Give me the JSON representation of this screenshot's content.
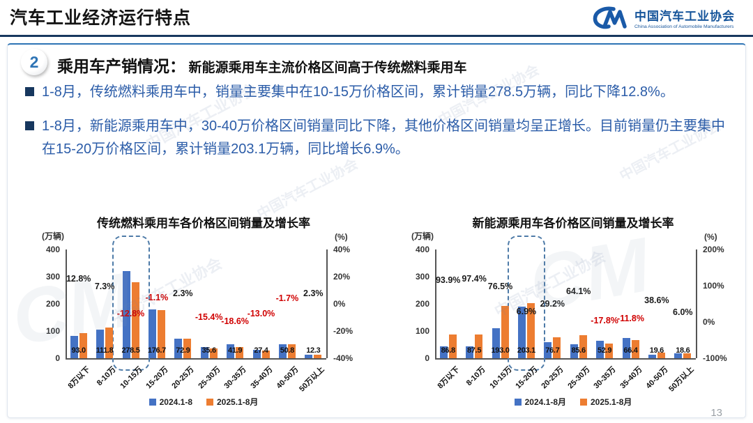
{
  "header": {
    "title": "汽车工业经济运行特点",
    "logo": {
      "icon": "caam-cm-logo",
      "name_cn": "中国汽车工业协会",
      "name_en": "China Association of Automobile Manufacturers"
    }
  },
  "section": {
    "badge": "2",
    "title": "乘用车产销情况：",
    "subtitle": "新能源乘用车主流价格区间高于传统燃料乘用车"
  },
  "bullets": [
    "1-8月，传统燃料乘用车中，销量主要集中在10-15万价格区间，累计销量278.5万辆，同比下降12.8%。",
    "1-8月，新能源乘用车中，30-40万价格区间销量同比下降，其他价格区间销量均呈正增长。目前销量仍主要集中在15-20万价格区间，累计销量203.1万辆，同比增长6.9%。"
  ],
  "page_number": "13",
  "watermark_text": "中国汽车工业协会",
  "colors": {
    "bar_2024": "#4472C4",
    "bar_2025": "#ED7D31",
    "negative_label": "#D00000",
    "positive_label": "#1a1a1a",
    "accent_blue": "#2E74B5",
    "rule_navy": "#17375E",
    "bullet_text": "#2B5CA8"
  },
  "chart_data": [
    {
      "type": "bar",
      "title": "传统燃料乘用车各价格区间销量及增长率",
      "unit_left": "(万辆)",
      "unit_right": "(%)",
      "ylim_left": [
        0,
        400
      ],
      "yticks_left": [
        400,
        300,
        200,
        100,
        0
      ],
      "ylim_right": [
        -40,
        40
      ],
      "yticks_right": [
        {
          "label": "40%",
          "value": 40
        },
        {
          "label": "20%",
          "value": 20
        },
        {
          "label": "0%",
          "value": 0
        },
        {
          "label": "-20%",
          "value": -20
        },
        {
          "label": "-40%",
          "value": -40
        }
      ],
      "grid": false,
      "legend_position": "bottom",
      "categories": [
        "8万以下",
        "8-10万",
        "10-15万",
        "15-20万",
        "20-25万",
        "25-30万",
        "30-35万",
        "35-40万",
        "40-50万",
        "50万以上"
      ],
      "series": [
        {
          "name": "2024.1-8",
          "color": "#4472C4",
          "values": [
            82.4,
            104.2,
            319.4,
            178.7,
            71.3,
            42.1,
            51.5,
            31.5,
            51.7,
            12.0
          ]
        },
        {
          "name": "2025.1-8月",
          "color": "#ED7D31",
          "values": [
            93.0,
            111.8,
            278.5,
            176.7,
            72.9,
            35.6,
            41.9,
            27.4,
            50.8,
            12.3
          ]
        }
      ],
      "value_labels": [
        "93.0",
        "111.8",
        "278.5",
        "176.7",
        "72.9",
        "35.6",
        "41.9",
        "27.4",
        "50.8",
        "12.3"
      ],
      "growth": [
        {
          "label": "12.8%",
          "value": 12.8
        },
        {
          "label": "7.3%",
          "value": 7.3
        },
        {
          "label": "-12.8%",
          "value": -12.8
        },
        {
          "label": "-1.1%",
          "value": -1.1
        },
        {
          "label": "2.3%",
          "value": 2.3
        },
        {
          "label": "-15.4%",
          "value": -15.4
        },
        {
          "label": "-18.6%",
          "value": -18.6
        },
        {
          "label": "-13.0%",
          "value": -13.0
        },
        {
          "label": "-1.7%",
          "value": -1.7
        },
        {
          "label": "2.3%",
          "value": 2.3
        }
      ],
      "highlight_index": 2,
      "legend": [
        "2024.1-8",
        "2025.1-8月"
      ]
    },
    {
      "type": "bar",
      "title": "新能源乘用车各价格区间销量及增长率",
      "unit_left": "(万辆)",
      "unit_right": "(%)",
      "ylim_left": [
        0,
        400
      ],
      "yticks_left": [
        400,
        300,
        200,
        100,
        0
      ],
      "ylim_right": [
        -100,
        200
      ],
      "yticks_right": [
        {
          "label": "200%",
          "value": 200
        },
        {
          "label": "100%",
          "value": 100
        },
        {
          "label": "0%",
          "value": 0
        },
        {
          "label": "-100%",
          "value": -100
        }
      ],
      "grid": false,
      "legend_position": "bottom",
      "categories": [
        "8万以下",
        "8-10万",
        "10-15万",
        "15-20万",
        "20-25万",
        "25-30万",
        "30-35万",
        "35-40万",
        "40-50万",
        "50万以上"
      ],
      "series": [
        {
          "name": "2024.1-8月",
          "color": "#4472C4",
          "values": [
            44.8,
            44.3,
            109.4,
            190.0,
            59.4,
            52.2,
            64.4,
            75.3,
            14.1,
            17.5
          ]
        },
        {
          "name": "2025.1-8月",
          "color": "#ED7D31",
          "values": [
            86.8,
            87.5,
            193.0,
            203.1,
            76.7,
            85.6,
            52.9,
            66.4,
            19.6,
            18.6
          ]
        }
      ],
      "value_labels": [
        "86.8",
        "87.5",
        "193.0",
        "203.1",
        "76.7",
        "85.6",
        "52.9",
        "66.4",
        "19.6",
        "18.6"
      ],
      "growth": [
        {
          "label": "93.9%",
          "value": 93.9
        },
        {
          "label": "97.4%",
          "value": 97.4
        },
        {
          "label": "76.5%",
          "value": 76.5
        },
        {
          "label": "6.9%",
          "value": 6.9
        },
        {
          "label": "29.2%",
          "value": 29.2
        },
        {
          "label": "64.1%",
          "value": 64.1
        },
        {
          "label": "-17.8%",
          "value": -17.8
        },
        {
          "label": "-11.8%",
          "value": -11.8
        },
        {
          "label": "38.6%",
          "value": 38.6
        },
        {
          "label": "6.0%",
          "value": 6.0
        }
      ],
      "highlight_index": 3,
      "legend": [
        "2024.1-8月",
        "2025.1-8月"
      ]
    }
  ]
}
